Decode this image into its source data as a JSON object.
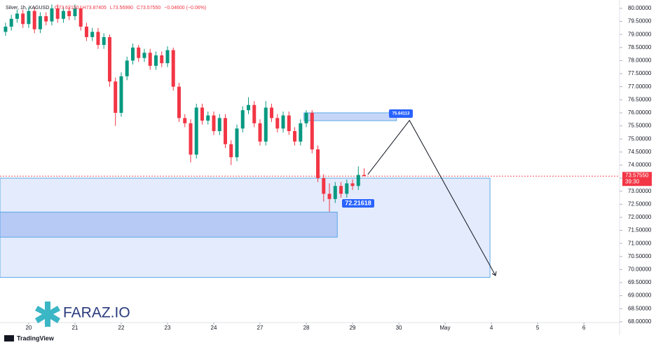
{
  "chart_data": {
    "type": "candlestick",
    "title": "Silver, 1h, XAGUSD",
    "ohlc_header": [
      "O73.62150",
      "H73.87405",
      "L73.56990",
      "C73.57550",
      "−0.04600 (−0.06%)"
    ],
    "x": [
      -0.5,
      -0.375,
      -0.25,
      -0.125,
      0,
      0.125,
      0.25,
      0.375,
      0.5,
      0.625,
      0.75,
      0.875,
      1,
      1.125,
      1.25,
      1.375,
      1.5,
      1.625,
      1.75,
      1.875,
      2,
      2.125,
      2.25,
      2.375,
      2.5,
      2.625,
      2.75,
      2.875,
      3,
      3.125,
      3.25,
      3.375,
      3.5,
      3.625,
      3.75,
      3.875,
      4,
      4.125,
      4.25,
      4.375,
      4.5,
      4.625,
      4.75,
      4.875,
      5,
      5.125,
      5.25,
      5.375,
      5.5,
      5.625,
      5.75,
      5.875,
      6,
      6.125,
      6.25,
      6.375,
      6.5,
      6.625,
      6.75,
      6.875,
      7,
      7.125,
      7.25
    ],
    "open": [
      79.1,
      79.3,
      79.6,
      79.8,
      79.4,
      79.9,
      79.2,
      79.7,
      79.5,
      80.0,
      79.6,
      79.9,
      79.7,
      80.0,
      79.3,
      78.9,
      79.1,
      78.6,
      78.9,
      77.2,
      76.0,
      77.4,
      78.0,
      78.5,
      78.1,
      78.3,
      77.8,
      78.2,
      77.9,
      78.4,
      77.0,
      75.8,
      75.6,
      74.4,
      76.2,
      75.7,
      75.9,
      75.3,
      75.8,
      74.8,
      74.3,
      75.4,
      76.1,
      76.3,
      75.6,
      74.9,
      76.2,
      75.8,
      75.4,
      75.9,
      75.3,
      74.9,
      75.6,
      76.0,
      74.6,
      73.5,
      72.9,
      72.7,
      73.2,
      72.9,
      73.3,
      73.2,
      73.6215
    ],
    "high": [
      79.45,
      79.75,
      79.95,
      79.95,
      80.05,
      80.05,
      79.85,
      79.85,
      80.15,
      80.15,
      80.05,
      80.05,
      80.15,
      80.1,
      79.45,
      79.25,
      79.25,
      79.05,
      79.0,
      77.35,
      77.55,
      78.15,
      78.65,
      78.6,
      78.45,
      78.45,
      78.35,
      78.35,
      78.55,
      78.5,
      77.15,
      75.95,
      75.75,
      76.35,
      76.35,
      76.05,
      76.05,
      75.95,
      75.95,
      74.95,
      75.55,
      76.25,
      76.6,
      76.45,
      75.75,
      76.45,
      76.35,
      75.95,
      76.05,
      76.05,
      75.45,
      75.75,
      76.1,
      76.1,
      74.75,
      73.65,
      73.3,
      73.35,
      73.35,
      73.45,
      73.45,
      73.95,
      73.87405
    ],
    "low": [
      78.95,
      79.15,
      79.45,
      79.25,
      79.25,
      79.05,
      79.05,
      79.35,
      79.35,
      79.45,
      79.45,
      79.55,
      79.55,
      79.15,
      78.75,
      78.75,
      78.45,
      78.45,
      77.0,
      75.5,
      75.85,
      77.25,
      77.85,
      77.95,
      77.95,
      77.65,
      77.65,
      77.75,
      77.75,
      76.85,
      75.65,
      75.45,
      74.1,
      74.25,
      75.55,
      75.55,
      75.15,
      75.15,
      74.65,
      74.0,
      74.15,
      75.25,
      75.95,
      75.45,
      74.75,
      74.75,
      75.65,
      75.25,
      75.25,
      75.15,
      74.75,
      74.75,
      75.45,
      74.45,
      73.35,
      72.6,
      72.21618,
      72.55,
      72.75,
      72.75,
      73.05,
      73.05,
      73.5699
    ],
    "close": [
      79.3,
      79.6,
      79.8,
      79.4,
      79.9,
      79.2,
      79.7,
      79.5,
      80.0,
      79.6,
      79.9,
      79.7,
      80.0,
      79.3,
      78.9,
      79.1,
      78.6,
      78.9,
      77.2,
      76.0,
      77.4,
      78.0,
      78.5,
      78.1,
      78.3,
      77.8,
      78.2,
      77.9,
      78.4,
      77.0,
      75.8,
      75.6,
      74.4,
      76.2,
      75.7,
      75.9,
      75.3,
      75.8,
      74.8,
      74.3,
      75.4,
      76.1,
      76.3,
      75.6,
      74.9,
      76.2,
      75.8,
      75.4,
      75.9,
      75.3,
      74.9,
      75.6,
      76.0,
      74.6,
      73.5,
      72.9,
      72.7,
      73.2,
      72.9,
      73.3,
      73.2,
      73.6215,
      73.5755
    ],
    "up_color": "#089981",
    "down_color": "#f23645",
    "xlim": [
      -0.62,
      12.71
    ],
    "ylim": [
      67.97,
      80.32
    ],
    "xticks": [
      {
        "value": 0,
        "label": "20"
      },
      {
        "value": 1,
        "label": "21"
      },
      {
        "value": 2,
        "label": "22"
      },
      {
        "value": 3,
        "label": "23"
      },
      {
        "value": 4,
        "label": "24"
      },
      {
        "value": 5,
        "label": "27"
      },
      {
        "value": 6,
        "label": "28"
      },
      {
        "value": 7,
        "label": "29"
      },
      {
        "value": 8,
        "label": "30"
      },
      {
        "value": 9,
        "label": "May"
      },
      {
        "value": 10,
        "label": "4"
      },
      {
        "value": 11,
        "label": "5"
      },
      {
        "value": 12,
        "label": "6"
      }
    ],
    "yticks": [
      {
        "value": 68,
        "label": "68.00000"
      },
      {
        "value": 68.5,
        "label": "68.50000"
      },
      {
        "value": 69,
        "label": "69.00000"
      },
      {
        "value": 69.5,
        "label": "69.50000"
      },
      {
        "value": 70,
        "label": "70.00000"
      },
      {
        "value": 70.5,
        "label": "70.50000"
      },
      {
        "value": 71,
        "label": "71.00000"
      },
      {
        "value": 71.5,
        "label": "71.50000"
      },
      {
        "value": 72,
        "label": "72.00000"
      },
      {
        "value": 72.5,
        "label": "72.50000"
      },
      {
        "value": 73,
        "label": "73.00000"
      },
      {
        "value": 73.5,
        "label": "73.50000"
      },
      {
        "value": 74,
        "label": "74.00000"
      },
      {
        "value": 74.5,
        "label": "74.50000"
      },
      {
        "value": 75,
        "label": "75.00000"
      },
      {
        "value": 75.5,
        "label": "75.50000"
      },
      {
        "value": 76,
        "label": "76.00000"
      },
      {
        "value": 76.5,
        "label": "76.50000"
      },
      {
        "value": 77,
        "label": "77.00000"
      },
      {
        "value": 77.5,
        "label": "77.50000"
      },
      {
        "value": 78,
        "label": "78.00000"
      },
      {
        "value": 78.5,
        "label": "78.50000"
      },
      {
        "value": 79,
        "label": "79.00000"
      },
      {
        "value": 79.5,
        "label": "79.50000"
      },
      {
        "value": 80,
        "label": "80.00000"
      }
    ],
    "last_price": {
      "value": 73.5755,
      "label": "73.57550"
    },
    "countdown": "39:30",
    "zones": [
      {
        "low": 69.7,
        "high": 73.5,
        "start": -0.62,
        "end": 9.97,
        "color": "#e3ebfc"
      },
      {
        "low": 71.24,
        "high": 72.2,
        "start": -0.62,
        "end": 6.67,
        "color": "#b7c9f5"
      },
      {
        "low": 75.7,
        "high": 76.0,
        "start": 5.95,
        "end": 7.95,
        "color": "#c7d6f8"
      }
    ],
    "projection": {
      "x": [
        7.33,
        8.23,
        10.09
      ],
      "y": [
        73.64,
        75.71,
        69.77
      ]
    },
    "callouts": [
      75.64113,
      72.21618
    ],
    "watermark": "FARAZ.IO",
    "footer": "TradingView"
  }
}
